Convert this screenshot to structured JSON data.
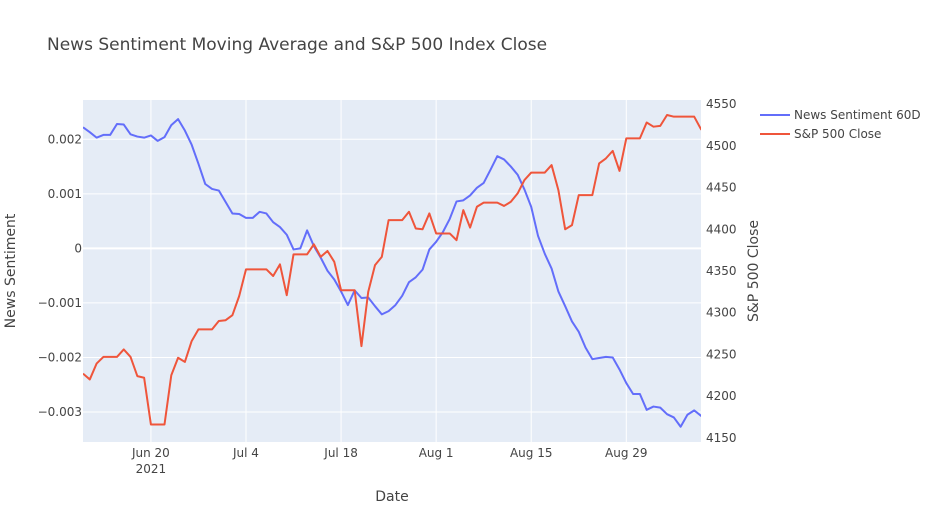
{
  "chart_data": {
    "type": "line",
    "title": "News Sentiment Moving Average and S&P 500 Index Close",
    "xlabel": "Date",
    "ylabel_left": "News Sentiment",
    "ylabel_right": "S&P 500 Close",
    "x_range": [
      "2021-06-10",
      "2021-09-09"
    ],
    "y_left_range": [
      -0.00355,
      0.00272
    ],
    "y_right_range": [
      4145,
      4555
    ],
    "x_ticks": [
      {
        "date": "2021-06-20",
        "label": "Jun 20",
        "sublabel": "2021"
      },
      {
        "date": "2021-07-04",
        "label": "Jul 4",
        "sublabel": ""
      },
      {
        "date": "2021-07-18",
        "label": "Jul 18",
        "sublabel": ""
      },
      {
        "date": "2021-08-01",
        "label": "Aug 1",
        "sublabel": ""
      },
      {
        "date": "2021-08-15",
        "label": "Aug 15",
        "sublabel": ""
      },
      {
        "date": "2021-08-29",
        "label": "Aug 29",
        "sublabel": ""
      }
    ],
    "y_left_ticks": [
      {
        "value": 0.002,
        "label": "0.002"
      },
      {
        "value": 0.001,
        "label": "0.001"
      },
      {
        "value": 0,
        "label": "0"
      },
      {
        "value": -0.001,
        "label": "−0.001"
      },
      {
        "value": -0.002,
        "label": "−0.002"
      },
      {
        "value": -0.003,
        "label": "−0.003"
      }
    ],
    "y_right_ticks": [
      {
        "value": 4150,
        "label": "4150"
      },
      {
        "value": 4200,
        "label": "4200"
      },
      {
        "value": 4250,
        "label": "4250"
      },
      {
        "value": 4300,
        "label": "4300"
      },
      {
        "value": 4350,
        "label": "4350"
      },
      {
        "value": 4400,
        "label": "4400"
      },
      {
        "value": 4450,
        "label": "4450"
      },
      {
        "value": 4500,
        "label": "4500"
      },
      {
        "value": 4550,
        "label": "4550"
      }
    ],
    "grid": true,
    "legend_position": "top-right",
    "series": [
      {
        "name": "News Sentiment 60D",
        "color": "#636efa",
        "axis": "left",
        "points": [
          [
            "2021-06-10",
            0.00222
          ],
          [
            "2021-06-11",
            0.00213
          ],
          [
            "2021-06-12",
            0.00203
          ],
          [
            "2021-06-13",
            0.00208
          ],
          [
            "2021-06-14",
            0.00208
          ],
          [
            "2021-06-15",
            0.00228
          ],
          [
            "2021-06-16",
            0.00227
          ],
          [
            "2021-06-17",
            0.00209
          ],
          [
            "2021-06-18",
            0.00205
          ],
          [
            "2021-06-19",
            0.00203
          ],
          [
            "2021-06-20",
            0.00207
          ],
          [
            "2021-06-21",
            0.00197
          ],
          [
            "2021-06-22",
            0.00204
          ],
          [
            "2021-06-23",
            0.00226
          ],
          [
            "2021-06-24",
            0.00237
          ],
          [
            "2021-06-25",
            0.00216
          ],
          [
            "2021-06-26",
            0.0019
          ],
          [
            "2021-06-27",
            0.00155
          ],
          [
            "2021-06-28",
            0.00118
          ],
          [
            "2021-06-29",
            0.00109
          ],
          [
            "2021-06-30",
            0.00106
          ],
          [
            "2021-07-01",
            0.00085
          ],
          [
            "2021-07-02",
            0.00064
          ],
          [
            "2021-07-03",
            0.00063
          ],
          [
            "2021-07-04",
            0.00056
          ],
          [
            "2021-07-05",
            0.00056
          ],
          [
            "2021-07-06",
            0.00067
          ],
          [
            "2021-07-07",
            0.00064
          ],
          [
            "2021-07-08",
            0.00048
          ],
          [
            "2021-07-09",
            0.00039
          ],
          [
            "2021-07-10",
            0.00025
          ],
          [
            "2021-07-11",
            -2e-05
          ],
          [
            "2021-07-12",
            0.0
          ],
          [
            "2021-07-13",
            0.00033
          ],
          [
            "2021-07-14",
            4e-05
          ],
          [
            "2021-07-15",
            -0.00017
          ],
          [
            "2021-07-16",
            -0.00041
          ],
          [
            "2021-07-17",
            -0.00057
          ],
          [
            "2021-07-18",
            -0.00079
          ],
          [
            "2021-07-19",
            -0.00104
          ],
          [
            "2021-07-20",
            -0.00077
          ],
          [
            "2021-07-21",
            -0.00091
          ],
          [
            "2021-07-22",
            -0.0009
          ],
          [
            "2021-07-23",
            -0.00106
          ],
          [
            "2021-07-24",
            -0.00121
          ],
          [
            "2021-07-25",
            -0.00115
          ],
          [
            "2021-07-26",
            -0.00104
          ],
          [
            "2021-07-27",
            -0.00087
          ],
          [
            "2021-07-28",
            -0.00062
          ],
          [
            "2021-07-29",
            -0.00053
          ],
          [
            "2021-07-30",
            -0.00039
          ],
          [
            "2021-07-31",
            -2e-05
          ],
          [
            "2021-08-01",
            0.00012
          ],
          [
            "2021-08-02",
            0.0003
          ],
          [
            "2021-08-03",
            0.00054
          ],
          [
            "2021-08-04",
            0.00086
          ],
          [
            "2021-08-05",
            0.00088
          ],
          [
            "2021-08-06",
            0.00097
          ],
          [
            "2021-08-07",
            0.00111
          ],
          [
            "2021-08-08",
            0.0012
          ],
          [
            "2021-08-09",
            0.00144
          ],
          [
            "2021-08-10",
            0.00169
          ],
          [
            "2021-08-11",
            0.00163
          ],
          [
            "2021-08-12",
            0.0015
          ],
          [
            "2021-08-13",
            0.00135
          ],
          [
            "2021-08-14",
            0.00108
          ],
          [
            "2021-08-15",
            0.00076
          ],
          [
            "2021-08-16",
            0.00023
          ],
          [
            "2021-08-17",
            -0.0001
          ],
          [
            "2021-08-18",
            -0.00037
          ],
          [
            "2021-08-19",
            -0.00079
          ],
          [
            "2021-08-20",
            -0.00106
          ],
          [
            "2021-08-21",
            -0.00134
          ],
          [
            "2021-08-22",
            -0.00153
          ],
          [
            "2021-08-23",
            -0.00182
          ],
          [
            "2021-08-24",
            -0.00203
          ],
          [
            "2021-08-25",
            -0.00201
          ],
          [
            "2021-08-26",
            -0.00199
          ],
          [
            "2021-08-27",
            -0.002
          ],
          [
            "2021-08-28",
            -0.00222
          ],
          [
            "2021-08-29",
            -0.00247
          ],
          [
            "2021-08-30",
            -0.00267
          ],
          [
            "2021-08-31",
            -0.00267
          ],
          [
            "2021-09-01",
            -0.00296
          ],
          [
            "2021-09-02",
            -0.0029
          ],
          [
            "2021-09-03",
            -0.00292
          ],
          [
            "2021-09-04",
            -0.00304
          ],
          [
            "2021-09-05",
            -0.0031
          ],
          [
            "2021-09-06",
            -0.00327
          ],
          [
            "2021-09-07",
            -0.00305
          ],
          [
            "2021-09-08",
            -0.00297
          ],
          [
            "2021-09-09",
            -0.00307
          ],
          [
            "2021-09-10",
            -0.00305
          ]
        ]
      },
      {
        "name": "S&P 500 Close",
        "color": "#ef553b",
        "axis": "right",
        "points": [
          [
            "2021-06-10",
            4227
          ],
          [
            "2021-06-11",
            4220
          ],
          [
            "2021-06-12",
            4239
          ],
          [
            "2021-06-13",
            4247
          ],
          [
            "2021-06-14",
            4247
          ],
          [
            "2021-06-15",
            4247
          ],
          [
            "2021-06-16",
            4256
          ],
          [
            "2021-06-17",
            4247
          ],
          [
            "2021-06-18",
            4224
          ],
          [
            "2021-06-19",
            4222
          ],
          [
            "2021-06-20",
            4166
          ],
          [
            "2021-06-21",
            4166
          ],
          [
            "2021-06-22",
            4166
          ],
          [
            "2021-06-23",
            4225
          ],
          [
            "2021-06-24",
            4246
          ],
          [
            "2021-06-25",
            4241
          ],
          [
            "2021-06-26",
            4266
          ],
          [
            "2021-06-27",
            4280
          ],
          [
            "2021-06-28",
            4280
          ],
          [
            "2021-06-29",
            4280
          ],
          [
            "2021-06-30",
            4290
          ],
          [
            "2021-07-01",
            4291
          ],
          [
            "2021-07-02",
            4297
          ],
          [
            "2021-07-03",
            4320
          ],
          [
            "2021-07-04",
            4352
          ],
          [
            "2021-07-05",
            4352
          ],
          [
            "2021-07-06",
            4352
          ],
          [
            "2021-07-07",
            4352
          ],
          [
            "2021-07-08",
            4344
          ],
          [
            "2021-07-09",
            4358
          ],
          [
            "2021-07-10",
            4321
          ],
          [
            "2021-07-11",
            4370
          ],
          [
            "2021-07-12",
            4370
          ],
          [
            "2021-07-13",
            4370
          ],
          [
            "2021-07-14",
            4382
          ],
          [
            "2021-07-15",
            4367
          ],
          [
            "2021-07-16",
            4374
          ],
          [
            "2021-07-17",
            4361
          ],
          [
            "2021-07-18",
            4327
          ],
          [
            "2021-07-19",
            4327
          ],
          [
            "2021-07-20",
            4327
          ],
          [
            "2021-07-21",
            4260
          ],
          [
            "2021-07-22",
            4325
          ],
          [
            "2021-07-23",
            4357
          ],
          [
            "2021-07-24",
            4367
          ],
          [
            "2021-07-25",
            4411
          ],
          [
            "2021-07-26",
            4411
          ],
          [
            "2021-07-27",
            4411
          ],
          [
            "2021-07-28",
            4421
          ],
          [
            "2021-07-29",
            4401
          ],
          [
            "2021-07-30",
            4400
          ],
          [
            "2021-07-31",
            4419
          ],
          [
            "2021-08-01",
            4395
          ],
          [
            "2021-08-02",
            4395
          ],
          [
            "2021-08-03",
            4395
          ],
          [
            "2021-08-04",
            4387
          ],
          [
            "2021-08-05",
            4423
          ],
          [
            "2021-08-06",
            4402
          ],
          [
            "2021-08-07",
            4427
          ],
          [
            "2021-08-08",
            4432
          ],
          [
            "2021-08-09",
            4432
          ],
          [
            "2021-08-10",
            4432
          ],
          [
            "2021-08-11",
            4428
          ],
          [
            "2021-08-12",
            4433
          ],
          [
            "2021-08-13",
            4443
          ],
          [
            "2021-08-14",
            4459
          ],
          [
            "2021-08-15",
            4468
          ],
          [
            "2021-08-16",
            4468
          ],
          [
            "2021-08-17",
            4468
          ],
          [
            "2021-08-18",
            4477
          ],
          [
            "2021-08-19",
            4447
          ],
          [
            "2021-08-20",
            4400
          ],
          [
            "2021-08-21",
            4405
          ],
          [
            "2021-08-22",
            4441
          ],
          [
            "2021-08-23",
            4441
          ],
          [
            "2021-08-24",
            4441
          ],
          [
            "2021-08-25",
            4479
          ],
          [
            "2021-08-26",
            4485
          ],
          [
            "2021-08-27",
            4494
          ],
          [
            "2021-08-28",
            4470
          ],
          [
            "2021-08-29",
            4509
          ],
          [
            "2021-08-30",
            4509
          ],
          [
            "2021-08-31",
            4509
          ],
          [
            "2021-09-01",
            4528
          ],
          [
            "2021-09-02",
            4523
          ],
          [
            "2021-09-03",
            4524
          ],
          [
            "2021-09-04",
            4537
          ],
          [
            "2021-09-05",
            4535
          ],
          [
            "2021-09-06",
            4535
          ],
          [
            "2021-09-07",
            4535
          ],
          [
            "2021-09-08",
            4535
          ],
          [
            "2021-09-09",
            4520
          ],
          [
            "2021-09-10",
            4514
          ]
        ]
      }
    ]
  }
}
